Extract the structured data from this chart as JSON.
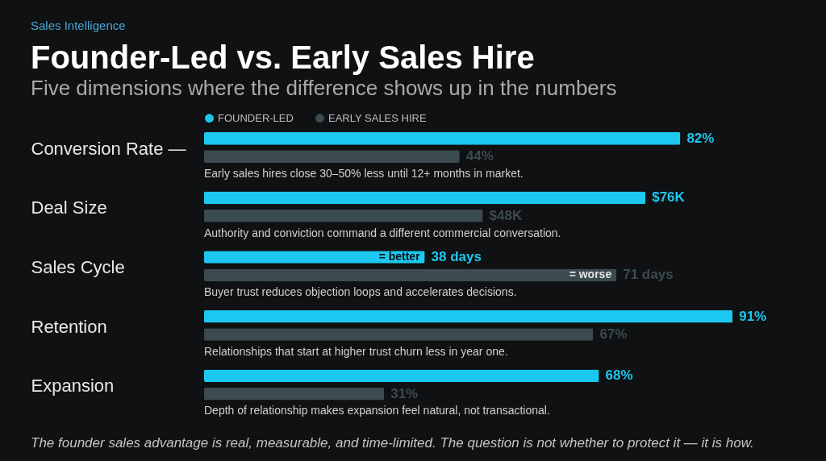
{
  "chart_data": {
    "type": "bar",
    "orientation": "horizontal",
    "title": "Founder-Led vs. Early Sales Hire",
    "subtitle": "Five dimensions where the difference shows up in the numbers",
    "categories": [
      "Conversion Rate —",
      "Deal Size",
      "Sales Cycle",
      "Retention",
      "Expansion"
    ],
    "series": [
      {
        "name": "FOUNDER-LED",
        "color": "#1cc8f0",
        "values": [
          82,
          76,
          38,
          91,
          68
        ],
        "value_labels": [
          "82%",
          "$76K",
          "38 days",
          "91%",
          "68%"
        ]
      },
      {
        "name": "EARLY SALES HIRE",
        "color": "#3b4b50",
        "values": [
          44,
          48,
          71,
          67,
          31
        ],
        "value_labels": [
          "44%",
          "$48K",
          "71 days",
          "67%",
          "31%"
        ]
      }
    ],
    "annotations": [
      "Sales Intelligence",
      {
        "text": "Early sales hires close 30–50% less until 12+ months in market.",
        "y": "Conversion Rate —"
      },
      {
        "text": "Authority and conviction command a different commercial conversation.",
        "y": "Deal Size"
      },
      {
        "text": "Buyer trust reduces objection loops and accelerates decisions.",
        "y": "Sales Cycle"
      },
      {
        "text": "Relationships that start at higher trust churn less in year one.",
        "y": "Retention"
      },
      {
        "text": "Depth of relationship makes expansion feel natural, not transactional.",
        "y": "Expansion"
      },
      {
        "text": "= better",
        "x": 38,
        "y": "Sales Cycle"
      },
      {
        "text": "= worse",
        "x": 71,
        "y": "Sales Cycle"
      },
      "The founder sales advantage is real, measurable, and time-limited. The question is not whether to protect it — it is how."
    ],
    "legend": "top"
  }
}
